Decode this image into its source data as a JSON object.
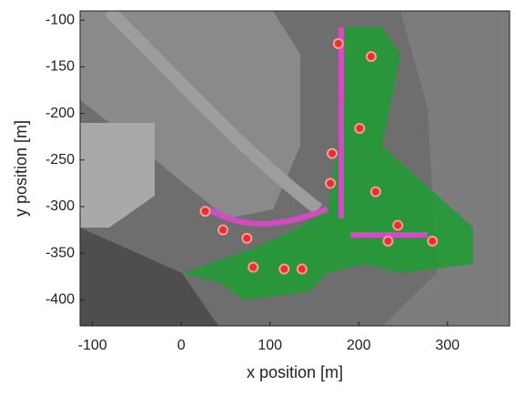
{
  "chart_data": {
    "type": "scatter",
    "xlabel": "x position [m]",
    "ylabel": "y position [m]",
    "x": [
      177,
      214,
      201,
      170,
      168,
      219,
      244,
      233,
      283,
      27,
      47,
      74,
      81,
      116,
      136
    ],
    "values": [
      -125,
      -139,
      -216,
      -243,
      -275,
      -284,
      -320,
      -337,
      -337,
      -305,
      -325,
      -334,
      -365,
      -367,
      -367
    ],
    "color": "#e8302e",
    "xlim": [
      -114,
      370
    ],
    "xticks": [
      -100,
      0,
      100,
      200,
      300
    ],
    "ylim": [
      -428,
      -90
    ],
    "yticks": [
      -400,
      -350,
      -300,
      -250,
      -200,
      -150,
      -100
    ]
  }
}
